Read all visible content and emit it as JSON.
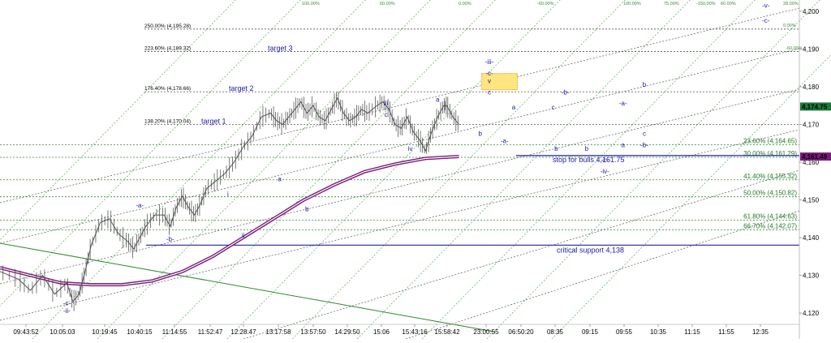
{
  "chart_data": {
    "type": "line",
    "title": "",
    "xlabel": "",
    "ylabel": "",
    "ylim": [
      4117,
      4203
    ],
    "y_ticks": [
      "4,200",
      "4,190",
      "4,180",
      "4,170",
      "4,160",
      "4,150",
      "4,140",
      "4,130",
      "4,120"
    ],
    "y_tick_values": [
      4200,
      4190,
      4180,
      4170,
      4160,
      4150,
      4140,
      4130,
      4120
    ],
    "x_ticks": [
      "09:43:52",
      "10:05:03",
      "10:19:45",
      "10:40:15",
      "11:14:55",
      "11:52:47",
      "12:28:47",
      "13:17:58",
      "13:57:50",
      "14:29:50",
      "15:06",
      "15:43:16",
      "15:58:42",
      "23:00:55",
      "06:50:20",
      "08:35",
      "09:15",
      "09:55",
      "10:35",
      "11:15",
      "11:55",
      "12:35"
    ],
    "price_badges": [
      {
        "text": "4,174.75",
        "value": 4174.75,
        "color": "#1a7a3a"
      },
      {
        "text": "4,161.49",
        "value": 4161.49,
        "color": "#7a1a7a"
      }
    ],
    "price_path": [
      [
        0,
        4131
      ],
      [
        6,
        4129
      ],
      [
        10,
        4126
      ],
      [
        14,
        4130
      ],
      [
        18,
        4125
      ],
      [
        22,
        4128
      ],
      [
        24,
        4123
      ],
      [
        26,
        4125
      ],
      [
        28,
        4131
      ],
      [
        30,
        4138
      ],
      [
        33,
        4144
      ],
      [
        36,
        4145
      ],
      [
        39,
        4141
      ],
      [
        42,
        4139
      ],
      [
        44,
        4137
      ],
      [
        46,
        4140
      ],
      [
        48,
        4143
      ],
      [
        51,
        4146
      ],
      [
        54,
        4146
      ],
      [
        56,
        4143
      ],
      [
        58,
        4148
      ],
      [
        60,
        4151
      ],
      [
        62,
        4148
      ],
      [
        64,
        4146
      ],
      [
        66,
        4149
      ],
      [
        68,
        4153
      ],
      [
        71,
        4155
      ],
      [
        74,
        4157
      ],
      [
        77,
        4160
      ],
      [
        80,
        4164
      ],
      [
        83,
        4167
      ],
      [
        86,
        4172
      ],
      [
        89,
        4173
      ],
      [
        91,
        4171
      ],
      [
        93,
        4170
      ],
      [
        95,
        4172
      ],
      [
        97,
        4174
      ],
      [
        99,
        4176
      ],
      [
        101,
        4173
      ],
      [
        103,
        4175
      ],
      [
        105,
        4172
      ],
      [
        107,
        4171
      ],
      [
        109,
        4174
      ],
      [
        111,
        4177
      ],
      [
        113,
        4173
      ],
      [
        115,
        4171
      ],
      [
        117,
        4172
      ],
      [
        119,
        4174
      ],
      [
        121,
        4173
      ],
      [
        124,
        4175
      ],
      [
        126,
        4176
      ],
      [
        128,
        4174
      ],
      [
        130,
        4170
      ],
      [
        132,
        4169
      ],
      [
        134,
        4172
      ],
      [
        136,
        4168
      ],
      [
        138,
        4166
      ],
      [
        140,
        4163
      ],
      [
        142,
        4168
      ],
      [
        144,
        4172
      ],
      [
        146,
        4175
      ],
      [
        147,
        4175
      ],
      [
        149,
        4172
      ],
      [
        151,
        4170
      ]
    ],
    "ma_path": [
      [
        0,
        4132
      ],
      [
        10,
        4130
      ],
      [
        20,
        4128
      ],
      [
        30,
        4127.5
      ],
      [
        40,
        4127.5
      ],
      [
        50,
        4128.5
      ],
      [
        60,
        4131
      ],
      [
        70,
        4135
      ],
      [
        80,
        4140
      ],
      [
        90,
        4145
      ],
      [
        100,
        4150
      ],
      [
        110,
        4154
      ],
      [
        120,
        4157.5
      ],
      [
        130,
        4159.5
      ],
      [
        140,
        4161
      ],
      [
        151,
        4161.5
      ]
    ],
    "fib_extensions": [
      {
        "label": "250.00% (4,195.28)",
        "value": 4195.28
      },
      {
        "label": "223.60% (4,189.32)",
        "value": 4189.32
      },
      {
        "label": "176.40% (4,178.66)",
        "value": 4178.66
      },
      {
        "label": "138.20% (4,170.04)",
        "value": 4170.04
      }
    ],
    "fib_retracements": [
      {
        "label": "23.60% (4,164.65)",
        "value": 4164.65
      },
      {
        "label": "30.00% (4,161.29)",
        "value": 4161.29
      },
      {
        "label": "41.40% (4,155.32)",
        "value": 4155.32
      },
      {
        "label": "50.00% (4,150.82)",
        "value": 4150.82
      },
      {
        "label": "61.80% (4,144.63)",
        "value": 4144.63
      },
      {
        "label": "66.70% (4,142.07)",
        "value": 4142.07
      }
    ],
    "targets": [
      {
        "label": "target 3",
        "value": 4189.32
      },
      {
        "label": "target 2",
        "value": 4178.66
      },
      {
        "label": "target 1",
        "value": 4170.04
      }
    ],
    "support_lines": [
      {
        "label": "stop for bulls 4,161.75",
        "value": 4161.75
      },
      {
        "label": "critical support 4,138",
        "value": 4138
      }
    ],
    "wave_labels": [
      {
        "text": "-c-",
        "x": 22,
        "y": 4122
      },
      {
        "text": "-ii-",
        "x": 22,
        "y": 4120
      },
      {
        "text": "-a-",
        "x": 46,
        "y": 4148
      },
      {
        "text": "-b-",
        "x": 56,
        "y": 4139
      },
      {
        "text": "i",
        "x": 75,
        "y": 4151
      },
      {
        "text": "ii",
        "x": 80,
        "y": 4140
      },
      {
        "text": "a",
        "x": 92,
        "y": 4155
      },
      {
        "text": "b",
        "x": 101,
        "y": 4147
      },
      {
        "text": "iii",
        "x": 127,
        "y": 4175
      },
      {
        "text": "c",
        "x": 127,
        "y": 4172
      },
      {
        "text": "iv",
        "x": 135,
        "y": 4163
      },
      {
        "text": "a",
        "x": 144,
        "y": 4176
      },
      {
        "text": "b",
        "x": 158,
        "y": 4167
      },
      {
        "text": "-iii-",
        "x": 161,
        "y": 4186
      },
      {
        "text": "-c-",
        "x": 161,
        "y": 4183
      },
      {
        "text": "v",
        "x": 161,
        "y": 4181
      },
      {
        "text": "c",
        "x": 161,
        "y": 4178
      },
      {
        "text": "a",
        "x": 169,
        "y": 4174
      },
      {
        "text": "-a-",
        "x": 166,
        "y": 4165
      },
      {
        "text": "c",
        "x": 182,
        "y": 4174
      },
      {
        "text": "-b-",
        "x": 186,
        "y": 4178
      },
      {
        "text": "b",
        "x": 183,
        "y": 4163
      },
      {
        "text": "b",
        "x": 193,
        "y": 4163
      },
      {
        "text": "-c-",
        "x": 199,
        "y": 4160
      },
      {
        "text": "-iv-",
        "x": 199,
        "y": 4157
      },
      {
        "text": "a",
        "x": 205,
        "y": 4164
      },
      {
        "text": "-a-",
        "x": 205,
        "y": 4175
      },
      {
        "text": "b",
        "x": 212,
        "y": 4180
      },
      {
        "text": "c",
        "x": 212,
        "y": 4167
      },
      {
        "text": "-b-",
        "x": 212,
        "y": 4164
      },
      {
        "text": "-v-",
        "x": 252,
        "y": 4201
      },
      {
        "text": "-c-",
        "x": 252,
        "y": 4197
      }
    ],
    "fan_labels": [
      "100.00%",
      "60.00%",
      "0.00%",
      "-60.00%",
      "100.00%",
      "75.00%",
      "-150.00%",
      "60.00%",
      "28.00%",
      "0.00%",
      "-60.00%"
    ],
    "grid": false,
    "legend": "none"
  }
}
